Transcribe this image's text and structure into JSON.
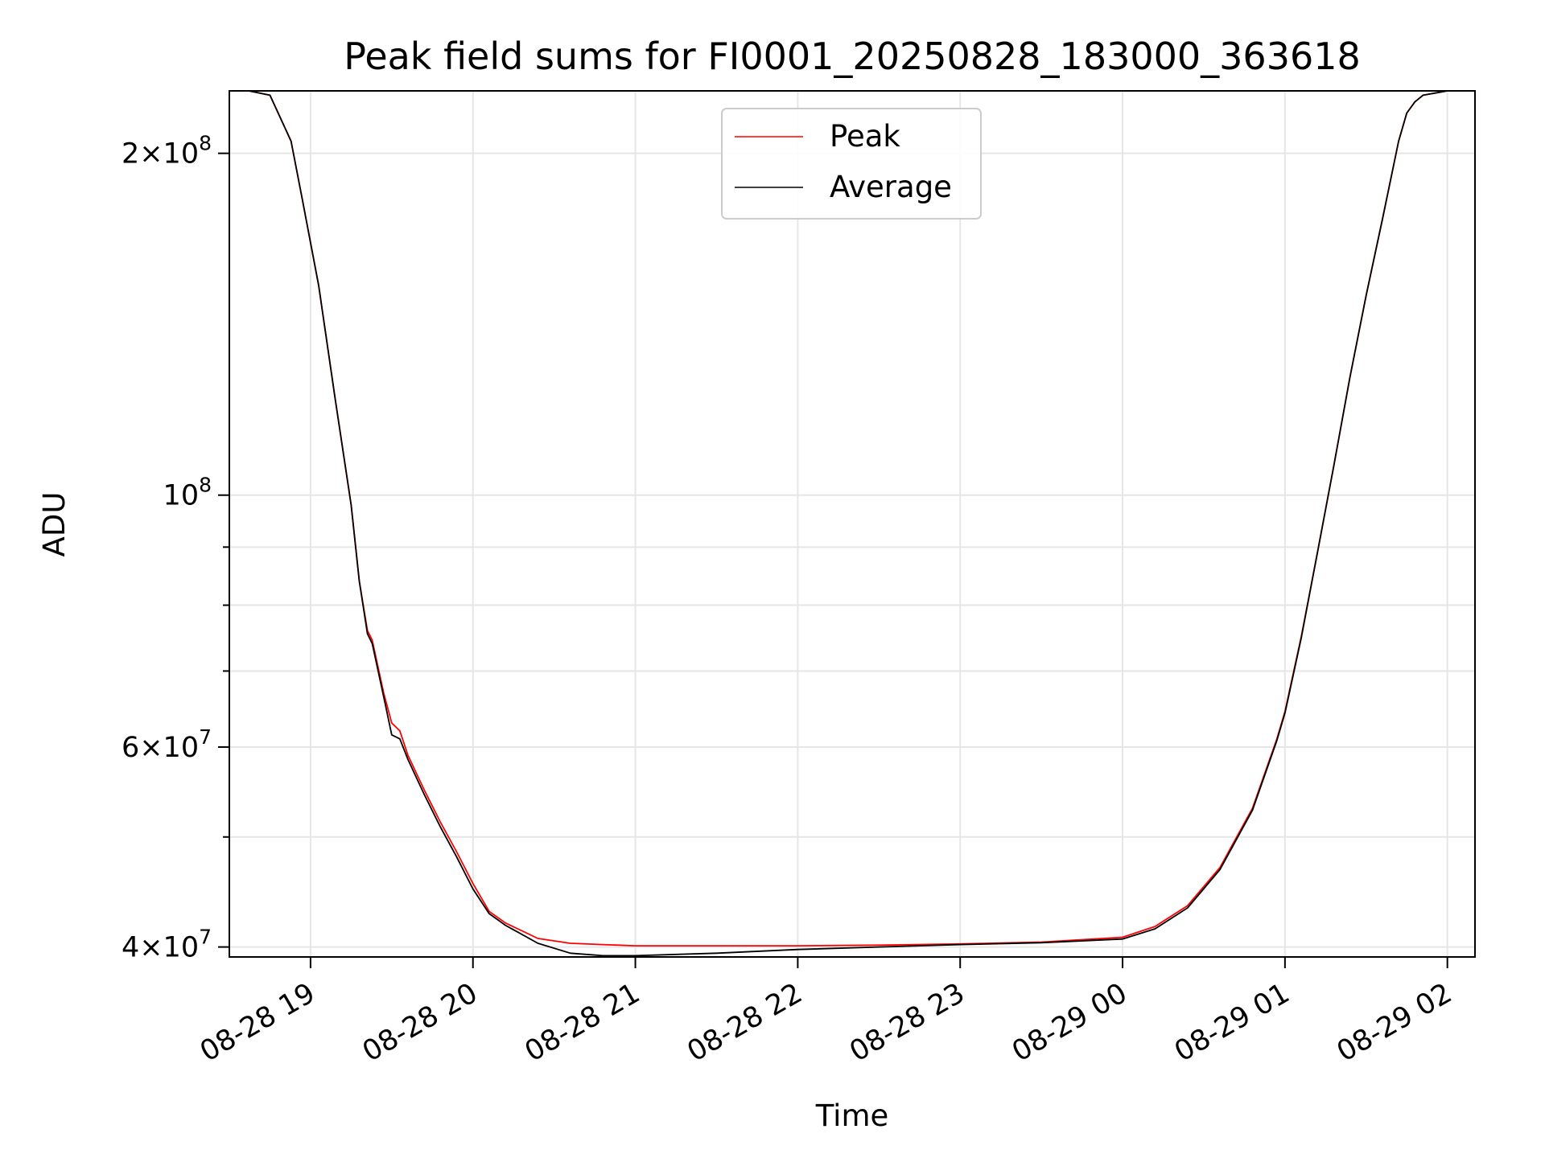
{
  "chart_data": {
    "type": "line",
    "title": "Peak field sums for FI0001_20250828_183000_363618",
    "xlabel": "Time",
    "ylabel": "ADU",
    "yscale": "log",
    "grid": true,
    "legend_position": "top-center",
    "x_ticks": [
      "08-28 19",
      "08-28 20",
      "08-28 21",
      "08-28 22",
      "08-28 23",
      "08-29 00",
      "08-29 01",
      "08-29 02"
    ],
    "x_tick_hours": [
      19,
      20,
      21,
      22,
      23,
      24,
      25,
      26
    ],
    "xlim_hours": [
      18.5,
      26.17
    ],
    "y_ticks": [
      {
        "value": 40000000,
        "base": "4",
        "exp": "7"
      },
      {
        "value": 60000000,
        "base": "6",
        "exp": "7"
      },
      {
        "value": 100000000,
        "base": "",
        "exp": "8"
      },
      {
        "value": 200000000,
        "base": "2",
        "exp": "8"
      }
    ],
    "y_minor_ticks": [
      50000000,
      70000000,
      80000000,
      90000000
    ],
    "ylim": [
      39200000,
      227000000
    ],
    "series": [
      {
        "name": "Peak",
        "color": "#ff0000",
        "x": [
          18.5,
          18.62,
          18.75,
          18.88,
          18.95,
          19.05,
          19.15,
          19.25,
          19.3,
          19.35,
          19.38,
          19.45,
          19.5,
          19.55,
          19.6,
          19.7,
          19.8,
          19.9,
          20.0,
          20.1,
          20.2,
          20.4,
          20.6,
          20.8,
          21.0,
          21.5,
          22.0,
          22.5,
          23.0,
          23.5,
          24.0,
          24.2,
          24.4,
          24.6,
          24.8,
          24.95,
          25.0,
          25.1,
          25.2,
          25.3,
          25.4,
          25.5,
          25.6,
          25.7,
          25.75,
          25.8,
          25.85,
          26.0,
          26.17
        ],
        "y": [
          227000000,
          227000000,
          225000000,
          205000000,
          182000000,
          153000000,
          122000000,
          98000000,
          84000000,
          76000000,
          74500000,
          67000000,
          63000000,
          62000000,
          59000000,
          55000000,
          51500000,
          48500000,
          45500000,
          43000000,
          42000000,
          40700000,
          40300000,
          40200000,
          40100000,
          40100000,
          40100000,
          40150000,
          40250000,
          40400000,
          40800000,
          41700000,
          43500000,
          47000000,
          53000000,
          61000000,
          64500000,
          75000000,
          89000000,
          106000000,
          127000000,
          150000000,
          175000000,
          205000000,
          217000000,
          222000000,
          225000000,
          227000000,
          227000000
        ]
      },
      {
        "name": "Average",
        "color": "#000000",
        "x": [
          18.5,
          18.62,
          18.75,
          18.88,
          18.95,
          19.05,
          19.15,
          19.25,
          19.3,
          19.35,
          19.38,
          19.45,
          19.5,
          19.55,
          19.6,
          19.7,
          19.8,
          19.9,
          20.0,
          20.1,
          20.2,
          20.4,
          20.6,
          20.8,
          21.0,
          21.5,
          22.0,
          22.5,
          23.0,
          23.5,
          24.0,
          24.2,
          24.4,
          24.6,
          24.8,
          24.95,
          25.0,
          25.1,
          25.2,
          25.3,
          25.4,
          25.5,
          25.6,
          25.7,
          25.75,
          25.8,
          25.85,
          26.0,
          26.17
        ],
        "y": [
          227000000,
          227000000,
          225000000,
          205000000,
          182000000,
          153000000,
          122000000,
          98000000,
          84000000,
          75500000,
          74000000,
          66500000,
          61500000,
          61000000,
          58500000,
          54500000,
          51000000,
          48000000,
          45000000,
          42800000,
          41800000,
          40300000,
          39500000,
          39300000,
          39300000,
          39500000,
          39800000,
          40000000,
          40200000,
          40350000,
          40650000,
          41500000,
          43300000,
          46800000,
          52800000,
          60800000,
          64300000,
          74800000,
          89000000,
          106000000,
          127000000,
          150000000,
          175000000,
          205000000,
          217000000,
          222000000,
          225000000,
          227000000,
          227000000
        ]
      }
    ]
  }
}
